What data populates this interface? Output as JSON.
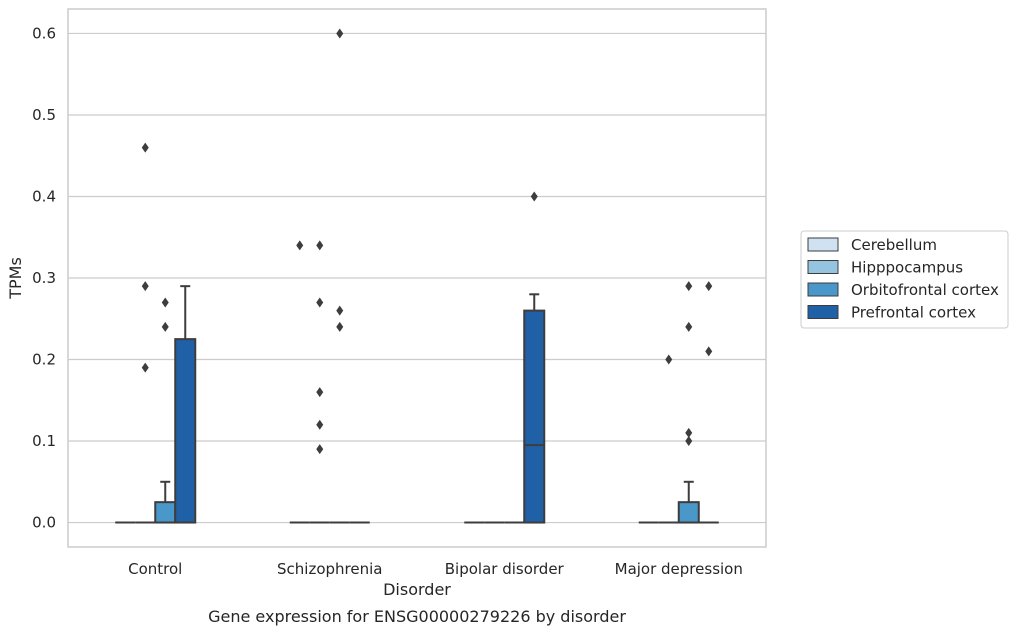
{
  "chart_data": {
    "type": "box",
    "xlabel": "Disorder",
    "ylabel": "TPMs",
    "caption": "Gene expression for ENSG00000279226 by disorder",
    "ylim": [
      -0.03,
      0.63
    ],
    "yticks": [
      "0.0",
      "0.1",
      "0.2",
      "0.3",
      "0.4",
      "0.5",
      "0.6"
    ],
    "grid": true,
    "legend_position": "right",
    "categories": [
      "Control",
      "Schizophrenia",
      "Bipolar disorder",
      "Major depression"
    ],
    "series": [
      {
        "name": "Cerebellum",
        "color": "#d0e1f2",
        "boxes": [
          {
            "q1": 0,
            "median": 0,
            "q3": 0,
            "whisker_low": 0,
            "whisker_high": 0,
            "outliers": []
          },
          {
            "q1": 0,
            "median": 0,
            "q3": 0,
            "whisker_low": 0,
            "whisker_high": 0,
            "outliers": [
              0.34
            ]
          },
          {
            "q1": 0,
            "median": 0,
            "q3": 0,
            "whisker_low": 0,
            "whisker_high": 0,
            "outliers": []
          },
          {
            "q1": 0,
            "median": 0,
            "q3": 0,
            "whisker_low": 0,
            "whisker_high": 0,
            "outliers": []
          }
        ]
      },
      {
        "name": "Hipppocampus",
        "color": "#94c4df",
        "boxes": [
          {
            "q1": 0,
            "median": 0,
            "q3": 0,
            "whisker_low": 0,
            "whisker_high": 0,
            "outliers": [
              0.46,
              0.29,
              0.19
            ]
          },
          {
            "q1": 0,
            "median": 0,
            "q3": 0,
            "whisker_low": 0,
            "whisker_high": 0,
            "outliers": [
              0.34,
              0.27,
              0.16,
              0.12,
              0.09
            ]
          },
          {
            "q1": 0,
            "median": 0,
            "q3": 0,
            "whisker_low": 0,
            "whisker_high": 0,
            "outliers": []
          },
          {
            "q1": 0,
            "median": 0,
            "q3": 0,
            "whisker_low": 0,
            "whisker_high": 0,
            "outliers": [
              0.2
            ]
          }
        ]
      },
      {
        "name": "Orbitofrontal cortex",
        "color": "#4a98c9",
        "boxes": [
          {
            "q1": 0,
            "median": 0,
            "q3": 0.025,
            "whisker_low": 0,
            "whisker_high": 0.05,
            "outliers": [
              0.27,
              0.24
            ]
          },
          {
            "q1": 0,
            "median": 0,
            "q3": 0,
            "whisker_low": 0,
            "whisker_high": 0,
            "outliers": [
              0.6,
              0.26,
              0.24
            ]
          },
          {
            "q1": 0,
            "median": 0,
            "q3": 0,
            "whisker_low": 0,
            "whisker_high": 0,
            "outliers": []
          },
          {
            "q1": 0,
            "median": 0,
            "q3": 0.025,
            "whisker_low": 0,
            "whisker_high": 0.05,
            "outliers": [
              0.29,
              0.24,
              0.11,
              0.1
            ]
          }
        ]
      },
      {
        "name": "Prefrontal cortex",
        "color": "#2060a7",
        "boxes": [
          {
            "q1": 0,
            "median": 0,
            "q3": 0.225,
            "whisker_low": 0,
            "whisker_high": 0.29,
            "outliers": []
          },
          {
            "q1": 0,
            "median": 0,
            "q3": 0,
            "whisker_low": 0,
            "whisker_high": 0,
            "outliers": []
          },
          {
            "q1": 0,
            "median": 0.095,
            "q3": 0.26,
            "whisker_low": 0,
            "whisker_high": 0.28,
            "outliers": [
              0.4
            ]
          },
          {
            "q1": 0,
            "median": 0,
            "q3": 0,
            "whisker_low": 0,
            "whisker_high": 0,
            "outliers": [
              0.29,
              0.21
            ]
          }
        ]
      }
    ]
  }
}
